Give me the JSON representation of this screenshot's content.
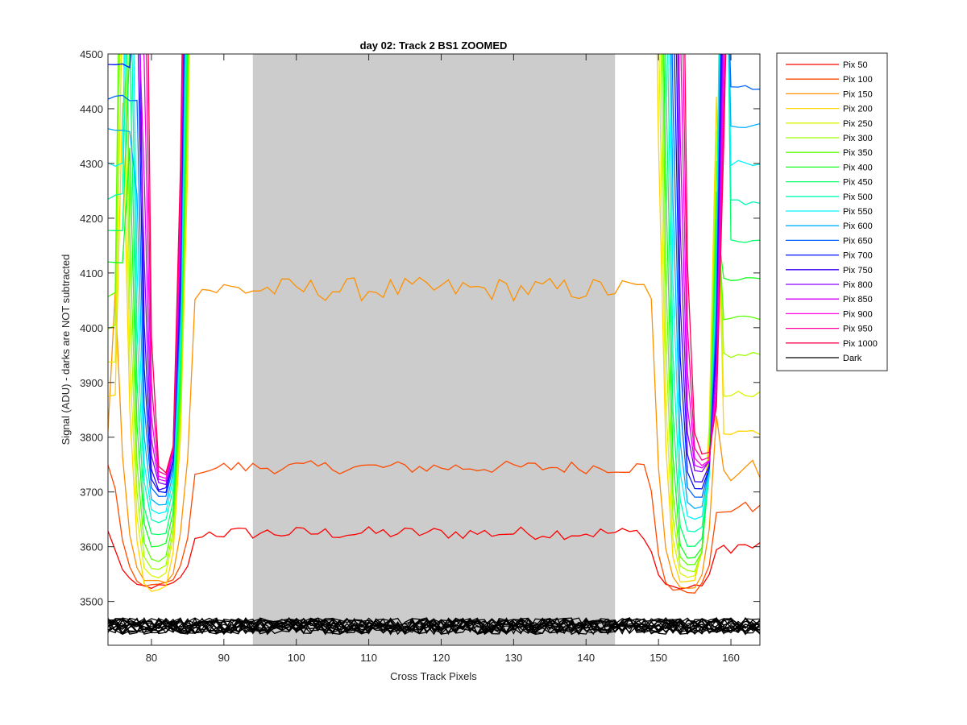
{
  "chart_data": {
    "type": "line",
    "title": "day 02: Track 2  BS1 ZOOMED",
    "xlabel": "Cross Track Pixels",
    "ylabel": "Signal (ADU) - darks are NOT subtracted",
    "xlim": [
      74,
      164
    ],
    "ylim": [
      3420,
      4500
    ],
    "xticks": [
      "80",
      "90",
      "100",
      "110",
      "120",
      "130",
      "140",
      "150",
      "160"
    ],
    "yticks": [
      "3500",
      "3600",
      "3700",
      "3800",
      "3900",
      "4000",
      "4100",
      "4200",
      "4300",
      "4400",
      "4500"
    ],
    "grid": false,
    "legend_placement": "outside-right",
    "shaded_region": {
      "x": [
        94,
        144
      ],
      "color": "#cccccc"
    },
    "series": [
      {
        "name": "Pix 50",
        "color": "#ff0000",
        "base": 3625,
        "min_left": 3527,
        "min_right": 3525
      },
      {
        "name": "Pix 100",
        "color": "#ff4a00",
        "base": 3745,
        "min_left": 3530,
        "min_right": 3518
      },
      {
        "name": "Pix 150",
        "color": "#ff9100",
        "base": 4070,
        "min_left": 3535,
        "min_right": 3530
      },
      {
        "name": "Pix 200",
        "color": "#ffd600",
        "base": null,
        "min_left": 3520,
        "min_right": 3535
      },
      {
        "name": "Pix 250",
        "color": "#d9f500",
        "base": null,
        "min_left": 3545,
        "min_right": 3545
      },
      {
        "name": "Pix 300",
        "color": "#9cff00",
        "base": null,
        "min_left": 3560,
        "min_right": 3555
      },
      {
        "name": "Pix 350",
        "color": "#5aff00",
        "base": null,
        "min_left": 3575,
        "min_right": 3565
      },
      {
        "name": "Pix 400",
        "color": "#10ff1e",
        "base": null,
        "min_left": 3600,
        "min_right": 3580
      },
      {
        "name": "Pix 450",
        "color": "#00ff6b",
        "base": null,
        "min_left": 3620,
        "min_right": 3600
      },
      {
        "name": "Pix 500",
        "color": "#00ffb3",
        "base": null,
        "min_left": 3645,
        "min_right": 3625
      },
      {
        "name": "Pix 550",
        "color": "#00f5ff",
        "base": null,
        "min_left": 3660,
        "min_right": 3650
      },
      {
        "name": "Pix 600",
        "color": "#00b0ff",
        "base": null,
        "min_left": 3675,
        "min_right": 3670
      },
      {
        "name": "Pix 650",
        "color": "#0066ff",
        "base": null,
        "min_left": 3690,
        "min_right": 3690
      },
      {
        "name": "Pix 700",
        "color": "#0010ff",
        "base": null,
        "min_left": 3700,
        "min_right": 3705
      },
      {
        "name": "Pix 750",
        "color": "#3a00ff",
        "base": null,
        "min_left": 3705,
        "min_right": 3720
      },
      {
        "name": "Pix 800",
        "color": "#8a00ff",
        "base": null,
        "min_left": 3715,
        "min_right": 3735
      },
      {
        "name": "Pix 850",
        "color": "#d400ff",
        "base": null,
        "min_left": 3720,
        "min_right": 3745
      },
      {
        "name": "Pix 900",
        "color": "#ff00e6",
        "base": null,
        "min_left": 3725,
        "min_right": 3750
      },
      {
        "name": "Pix 950",
        "color": "#ff009c",
        "base": null,
        "min_left": 3730,
        "min_right": 3760
      },
      {
        "name": "Pix 1000",
        "color": "#ff0050",
        "base": null,
        "min_left": 3735,
        "min_right": 3770
      },
      {
        "name": "Dark",
        "color": "#000000",
        "base": 3455,
        "min_left": null,
        "min_right": null
      }
    ]
  }
}
